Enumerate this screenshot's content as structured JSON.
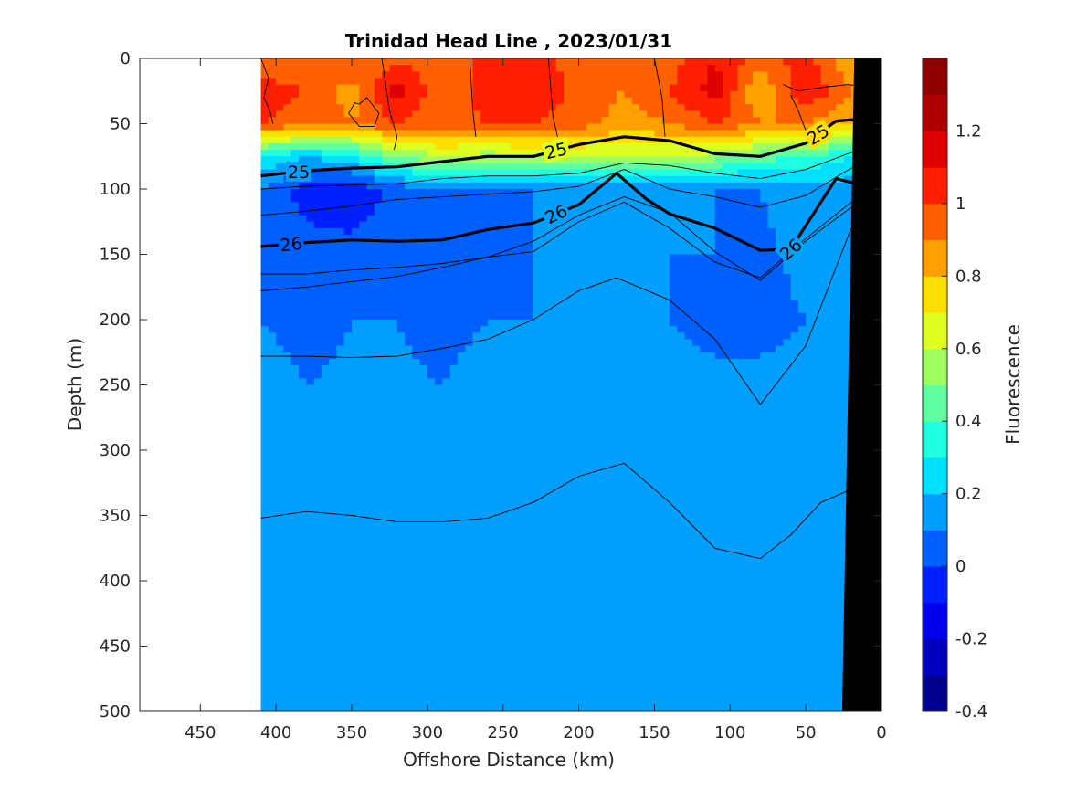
{
  "chart_data": {
    "type": "heatmap",
    "title": "Trinidad Head Line , 2023/01/31",
    "xlabel": "Offshore Distance (km)",
    "ylabel": "Depth (m)",
    "xlim": [
      490,
      0
    ],
    "ylim": [
      0,
      500
    ],
    "x_reversed": true,
    "y_reversed": true,
    "x_ticks": [
      450,
      400,
      350,
      300,
      250,
      200,
      150,
      100,
      50,
      0
    ],
    "y_ticks": [
      0,
      50,
      100,
      150,
      200,
      250,
      300,
      350,
      400,
      450,
      500
    ],
    "data_x_range_km": [
      410,
      0
    ],
    "colorbar": {
      "label": "Fluorescence",
      "range": [
        -0.4,
        1.4
      ],
      "tick_labels": [
        "-0.4",
        "-0.2",
        "0",
        "0.2",
        "0.4",
        "0.6",
        "0.8",
        "1",
        "1.2"
      ],
      "tick_values": [
        -0.4,
        -0.2,
        0,
        0.2,
        0.4,
        0.6,
        0.8,
        1.0,
        1.2
      ],
      "level_colors": [
        "#00008f",
        "#0000bf",
        "#0000ef",
        "#0020ff",
        "#0060ff",
        "#009fff",
        "#00dfff",
        "#20ffdf",
        "#60ff9f",
        "#9fff60",
        "#dfff20",
        "#ffdf00",
        "#ff9f00",
        "#ff6000",
        "#ff2000",
        "#df0000",
        "#af0000",
        "#8f0000"
      ]
    },
    "fluorescence_field": {
      "distance_km": [
        410,
        380,
        350,
        320,
        290,
        260,
        230,
        200,
        170,
        140,
        110,
        80,
        50,
        20
      ],
      "depth_m": [
        0,
        25,
        50,
        75,
        100,
        150,
        200,
        300,
        400,
        500
      ],
      "values": [
        [
          0.9,
          0.95,
          1.0,
          0.95,
          1.0,
          1.0,
          1.05,
          0.95,
          0.9,
          0.95,
          1.1,
          0.95,
          1.05,
          0.8
        ],
        [
          1.05,
          1.0,
          0.85,
          1.15,
          0.9,
          1.05,
          1.1,
          0.95,
          0.9,
          1.0,
          1.15,
          0.8,
          1.1,
          0.9
        ],
        [
          1.0,
          0.95,
          0.9,
          1.0,
          0.95,
          1.0,
          1.0,
          0.95,
          0.85,
          0.9,
          1.0,
          0.9,
          0.9,
          0.8
        ],
        [
          0.3,
          0.2,
          0.3,
          0.5,
          0.6,
          0.55,
          0.6,
          0.6,
          0.6,
          0.6,
          0.55,
          0.45,
          0.4,
          0.3
        ],
        [
          0.1,
          -0.05,
          -0.1,
          0.05,
          0.1,
          0.1,
          0.1,
          0.1,
          0.1,
          0.1,
          0.1,
          0.1,
          0.15,
          0.15
        ],
        [
          0.05,
          0.05,
          0.05,
          0.08,
          0.08,
          0.08,
          0.1,
          0.1,
          0.12,
          0.1,
          0.1,
          0.08,
          0.12,
          0.15
        ],
        [
          0.1,
          0.08,
          0.1,
          0.1,
          0.08,
          0.1,
          0.1,
          0.12,
          0.12,
          0.1,
          0.08,
          0.08,
          0.1,
          0.15
        ],
        [
          0.15,
          0.12,
          0.12,
          0.12,
          0.12,
          0.15,
          0.15,
          0.15,
          0.15,
          0.15,
          0.15,
          0.15,
          0.15,
          0.15
        ],
        [
          0.15,
          0.15,
          0.12,
          0.15,
          0.15,
          0.15,
          0.15,
          0.15,
          0.15,
          0.15,
          0.15,
          0.15,
          0.15,
          0.15
        ],
        [
          0.15,
          0.15,
          0.15,
          0.12,
          0.15,
          0.15,
          0.15,
          0.15,
          0.15,
          0.15,
          0.15,
          0.15,
          0.15,
          0.15
        ]
      ]
    },
    "contours": [
      {
        "label": "25",
        "bold": true,
        "x": [
          410,
          380,
          350,
          320,
          290,
          260,
          230,
          200,
          170,
          140,
          110,
          80,
          50,
          30,
          10
        ],
        "y": [
          90,
          86,
          84,
          83,
          79,
          75,
          75,
          66,
          60,
          63,
          73,
          75,
          65,
          48,
          46
        ]
      },
      {
        "label": "26",
        "bold": true,
        "x": [
          410,
          380,
          350,
          320,
          290,
          260,
          230,
          200,
          175,
          155,
          140,
          110,
          80,
          60,
          30,
          10
        ],
        "y": [
          144,
          141,
          139,
          140,
          139,
          131,
          126,
          112,
          88,
          108,
          119,
          130,
          147,
          146,
          92,
          98
        ]
      },
      {
        "label": "",
        "bold": false,
        "x": [
          410,
          380,
          350,
          320,
          290,
          260,
          230,
          200,
          170,
          140,
          110,
          80,
          50,
          20,
          10
        ],
        "y": [
          100,
          98,
          97,
          96,
          92,
          90,
          90,
          88,
          80,
          82,
          88,
          92,
          85,
          72,
          70
        ]
      },
      {
        "label": "",
        "bold": false,
        "x": [
          410,
          380,
          350,
          320,
          290,
          260,
          230,
          200,
          170,
          140,
          110,
          80,
          50,
          20,
          10
        ],
        "y": [
          120,
          117,
          113,
          108,
          106,
          104,
          102,
          98,
          85,
          100,
          106,
          114,
          105,
          84,
          82
        ]
      },
      {
        "label": "",
        "bold": false,
        "x": [
          410,
          380,
          350,
          320,
          290,
          260,
          230,
          200,
          170,
          140,
          110,
          80,
          50,
          20,
          10
        ],
        "y": [
          165,
          165,
          162,
          160,
          157,
          152,
          148,
          125,
          110,
          130,
          156,
          168,
          138,
          110,
          108
        ]
      },
      {
        "label": "",
        "bold": false,
        "x": [
          410,
          380,
          350,
          320,
          290,
          260,
          230,
          200,
          170,
          140,
          110,
          80,
          50,
          20,
          10
        ],
        "y": [
          178,
          175,
          171,
          167,
          160,
          152,
          140,
          120,
          106,
          118,
          148,
          170,
          140,
          114,
          112
        ]
      },
      {
        "label": "",
        "bold": false,
        "x": [
          410,
          380,
          350,
          320,
          290,
          260,
          230,
          200,
          175,
          140,
          110,
          80,
          50,
          20,
          10
        ],
        "y": [
          228,
          228,
          229,
          228,
          222,
          215,
          200,
          178,
          168,
          185,
          215,
          265,
          220,
          130,
          126
        ]
      },
      {
        "label": "",
        "bold": false,
        "x": [
          410,
          380,
          350,
          320,
          290,
          260,
          230,
          200,
          170,
          140,
          110,
          80,
          60,
          40,
          20
        ],
        "y": [
          352,
          347,
          350,
          355,
          355,
          352,
          340,
          320,
          310,
          340,
          375,
          383,
          365,
          340,
          330
        ]
      }
    ],
    "surface_contours": [
      {
        "x": [
          410,
          405,
          408,
          404,
          402
        ],
        "y": [
          0,
          15,
          30,
          40,
          50
        ]
      },
      {
        "x": [
          345,
          340,
          332,
          335,
          345,
          352,
          348,
          345
        ],
        "y": [
          35,
          30,
          42,
          52,
          52,
          42,
          34,
          35
        ]
      },
      {
        "x": [
          330,
          325,
          320,
          322
        ],
        "y": [
          0,
          40,
          60,
          70
        ]
      },
      {
        "x": [
          272,
          270,
          268
        ],
        "y": [
          0,
          40,
          60
        ]
      },
      {
        "x": [
          220,
          217,
          214
        ],
        "y": [
          0,
          45,
          60
        ]
      },
      {
        "x": [
          150,
          145,
          143
        ],
        "y": [
          0,
          30,
          60
        ]
      },
      {
        "x": [
          65,
          55,
          38,
          22,
          10
        ],
        "y": [
          20,
          25,
          22,
          20,
          22
        ]
      },
      {
        "x": [
          60,
          55,
          50,
          45
        ],
        "y": [
          28,
          40,
          55,
          65
        ]
      }
    ],
    "bathymetry": {
      "x": [
        0,
        18,
        26,
        0
      ],
      "y": [
        0,
        0,
        500,
        500
      ]
    }
  }
}
